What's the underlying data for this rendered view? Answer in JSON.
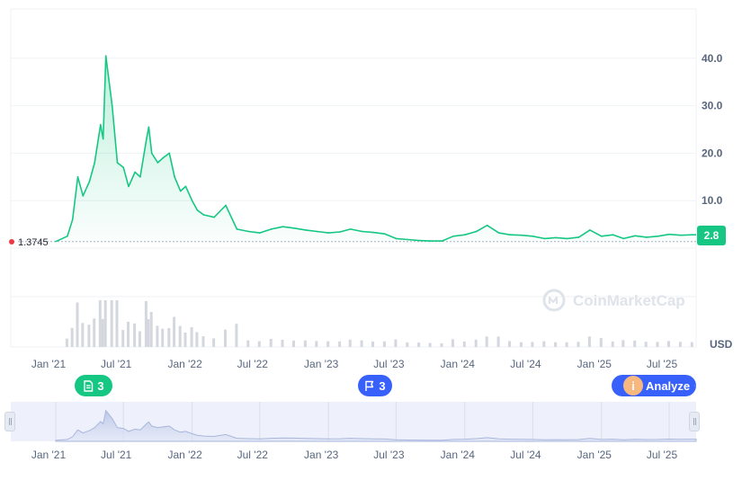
{
  "chart_data": {
    "type": "area",
    "series": [
      {
        "x": [
          "2021-01-01",
          "2021-02-01",
          "2021-02-15",
          "2021-03-01",
          "2021-03-15",
          "2021-04-01",
          "2021-04-15",
          "2021-05-01",
          "2021-05-08",
          "2021-05-15",
          "2021-06-01",
          "2021-06-15",
          "2021-07-01",
          "2021-07-15",
          "2021-08-01",
          "2021-08-15",
          "2021-09-01",
          "2021-09-07",
          "2021-09-15",
          "2021-10-01",
          "2021-10-15",
          "2021-11-01",
          "2021-11-15",
          "2021-12-01",
          "2021-12-15",
          "2022-01-01",
          "2022-01-15",
          "2022-02-01",
          "2022-03-01",
          "2022-04-01",
          "2022-05-01",
          "2022-06-01",
          "2022-07-01",
          "2022-08-01",
          "2022-09-01",
          "2022-10-01",
          "2022-11-01",
          "2022-12-01",
          "2023-01-01",
          "2023-02-01",
          "2023-03-01",
          "2023-04-01",
          "2023-05-01",
          "2023-06-01",
          "2023-07-01",
          "2023-08-01",
          "2023-09-01",
          "2023-10-01",
          "2023-11-01",
          "2023-12-01",
          "2024-01-01",
          "2024-02-01",
          "2024-03-01",
          "2024-04-01",
          "2024-05-01",
          "2024-06-01",
          "2024-07-01",
          "2024-08-01",
          "2024-09-01",
          "2024-10-01",
          "2024-11-01",
          "2024-12-01",
          "2025-01-01",
          "2025-02-01",
          "2025-03-01",
          "2025-04-01",
          "2025-05-01",
          "2025-06-01",
          "2025-07-01",
          "2025-08-01",
          "2025-09-01"
        ],
        "values": [
          1.3745,
          2.5,
          6,
          15,
          11,
          14,
          18,
          26,
          23,
          40.5,
          30,
          18,
          17,
          13,
          16,
          15,
          23,
          25.5,
          20,
          18,
          19,
          20,
          15,
          12,
          13,
          10,
          8,
          7,
          6.5,
          9,
          4,
          3.5,
          3.2,
          4,
          4.5,
          4.2,
          3.8,
          3.5,
          3.2,
          3.4,
          4,
          3.5,
          3.3,
          3.0,
          2.0,
          1.8,
          1.6,
          1.5,
          1.5,
          2.5,
          2.8,
          3.5,
          4.8,
          3.2,
          2.8,
          2.7,
          2.5,
          2.0,
          2.2,
          2.0,
          2.3,
          3.8,
          2.5,
          2.8,
          2.0,
          2.6,
          2.3,
          2.5,
          2.9,
          2.7,
          2.8
        ]
      }
    ],
    "ylim": [
      0,
      50
    ],
    "y_ticks": [
      "10.0",
      "20.0",
      "30.0",
      "40.0"
    ],
    "x_ticks": [
      "Jan '21",
      "Jul '21",
      "Jan '22",
      "Jul '22",
      "Jan '23",
      "Jul '23",
      "Jan '24",
      "Jul '24",
      "Jan '25",
      "Jul '25"
    ],
    "x_tick_dates": [
      "2021-01-01",
      "2021-07-01",
      "2022-01-01",
      "2022-07-01",
      "2023-01-01",
      "2023-07-01",
      "2024-01-01",
      "2024-07-01",
      "2025-01-01",
      "2025-07-01"
    ],
    "start_price": "1.3745",
    "current_price": "2.8",
    "currency": "USD",
    "grid": true,
    "colors": {
      "up": "#16c784",
      "down": "#ea3943",
      "events": "#3861fb",
      "volume": "#d4d7de"
    }
  },
  "badges": {
    "news_count": "3",
    "events_count": "3",
    "analyze_label": "Analyze",
    "info_glyph": "i"
  },
  "watermark": "CoinMarketCap",
  "icons": {
    "news": "document-icon",
    "events": "flag-icon",
    "analyze": "chevron-right-icon",
    "watermark": "coinmarketcap-logo-icon"
  }
}
